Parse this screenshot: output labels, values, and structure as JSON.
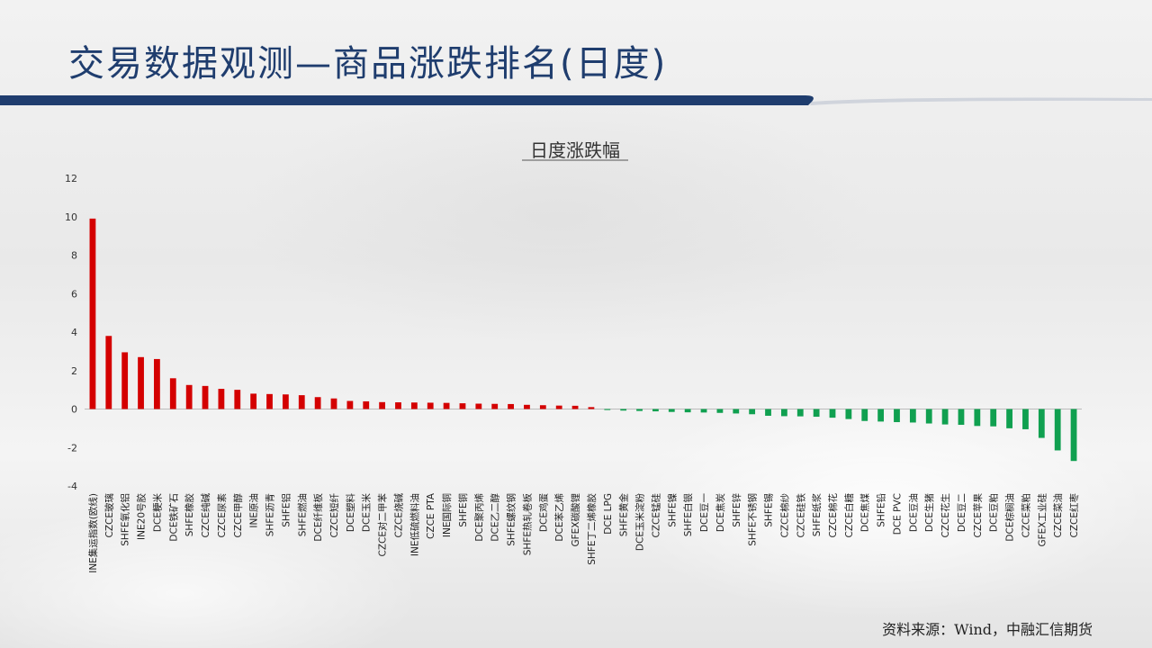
{
  "slide": {
    "title": "交易数据观测—商品涨跌排名(日度)",
    "source": "资料来源：Wind，中融汇信期货"
  },
  "colors": {
    "title": "#1f3d6e",
    "band": "#1f3d6e",
    "up": "#d40000",
    "down": "#10a050"
  },
  "chart_data": {
    "type": "bar",
    "title": "日度涨跌幅",
    "xlabel": "",
    "ylabel": "",
    "ylim": [
      -4,
      12
    ],
    "yticks": [
      12,
      10,
      8,
      6,
      4,
      2,
      0,
      -2,
      -4
    ],
    "grid": false,
    "legend": "none",
    "categories": [
      "INE集运指数(欧线)",
      "CZCE玻璃",
      "SHFE氧化铝",
      "INE20号胶",
      "DCE粳米",
      "DCE铁矿石",
      "SHFE橡胶",
      "CZCE纯碱",
      "CZCE尿素",
      "CZCE甲醇",
      "INE原油",
      "SHFE沥青",
      "SHFE铝",
      "SHFE燃油",
      "DCE纤维板",
      "CZCE短纤",
      "DCE塑料",
      "DCE玉米",
      "CZCE对二甲苯",
      "CZCE烧碱",
      "INE低硫燃料油",
      "CZCE PTA",
      "INE国际铜",
      "SHFE铜",
      "DCE聚丙烯",
      "DCE乙二醇",
      "SHFE螺纹钢",
      "SHFE热轧卷板",
      "DCE鸡蛋",
      "DCE苯乙烯",
      "GFEX碳酸锂",
      "SHFE丁二烯橡胶",
      "DCE LPG",
      "SHFE黄金",
      "DCE玉米淀粉",
      "CZCE锰硅",
      "SHFE镍",
      "SHFE白银",
      "DCE豆一",
      "DCE焦炭",
      "SHFE锌",
      "SHFE不锈钢",
      "SHFE锡",
      "CZCE棉纱",
      "CZCE硅铁",
      "SHFE纸浆",
      "CZCE棉花",
      "CZCE白糖",
      "DCE焦煤",
      "SHFE铅",
      "DCE PVC",
      "DCE豆油",
      "DCE生猪",
      "CZCE花生",
      "DCE豆二",
      "CZCE苹果",
      "DCE豆粕",
      "DCE棕榈油",
      "CZCE菜粕",
      "GFEX工业硅",
      "CZCE菜油",
      "CZCE红枣"
    ],
    "values": [
      9.9,
      3.8,
      2.95,
      2.7,
      2.6,
      1.6,
      1.25,
      1.2,
      1.05,
      1.0,
      0.8,
      0.78,
      0.76,
      0.72,
      0.62,
      0.55,
      0.42,
      0.4,
      0.36,
      0.35,
      0.34,
      0.33,
      0.32,
      0.3,
      0.28,
      0.27,
      0.26,
      0.22,
      0.2,
      0.18,
      0.17,
      0.1,
      -0.05,
      -0.08,
      -0.1,
      -0.12,
      -0.15,
      -0.17,
      -0.18,
      -0.2,
      -0.23,
      -0.27,
      -0.35,
      -0.37,
      -0.38,
      -0.4,
      -0.45,
      -0.52,
      -0.62,
      -0.65,
      -0.68,
      -0.7,
      -0.75,
      -0.8,
      -0.82,
      -0.88,
      -0.9,
      -1.0,
      -1.05,
      -1.5,
      -2.15,
      -2.7
    ]
  }
}
